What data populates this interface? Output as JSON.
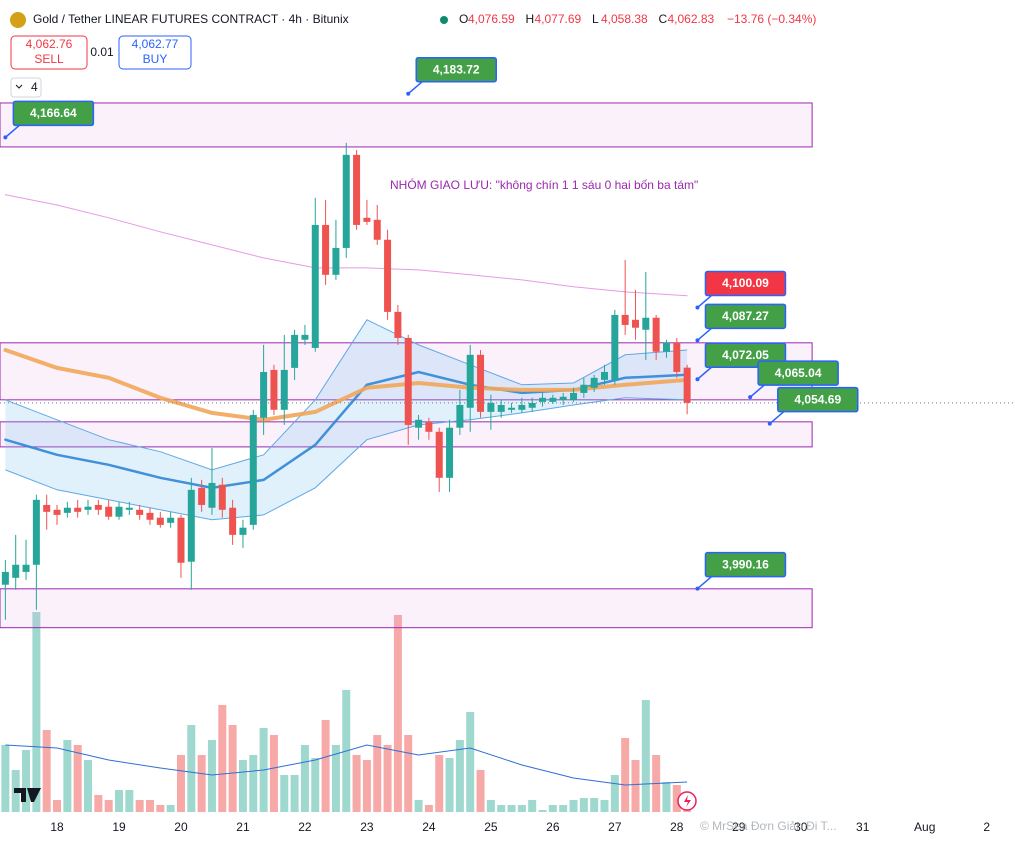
{
  "header": {
    "symbol": "Gold / Tether LINEAR FUTURES CONTRACT · 4h · Bitunix",
    "ohlc": [
      {
        "key": "O",
        "value": "4,076.59"
      },
      {
        "key": "H",
        "value": "4,077.69"
      },
      {
        "key": "L",
        "value": "4,058.38"
      },
      {
        "key": "C",
        "value": "4,062.83"
      }
    ],
    "change": "−13.76 (−0.34%)",
    "sell_price": "4,062.76",
    "sell": "SELL",
    "spread": "0.01",
    "buy_price": "4,062.77",
    "buy": "BUY",
    "indicators": "4"
  },
  "chart_data": {
    "type": "candlestick",
    "up_color": "#26a69a",
    "down_color": "#ef5350",
    "volume_up_color": "#9fd8cf",
    "volume_down_color": "#f7a9a8",
    "xlim": [
      -0.52,
      97.74
    ],
    "ylim": [
      3903.6,
      4196.9
    ],
    "volume_lim": [
      0,
      250
    ],
    "xticks": [
      {
        "value": 5,
        "label": "18"
      },
      {
        "value": 11,
        "label": "19"
      },
      {
        "value": 17,
        "label": "20"
      },
      {
        "value": 23,
        "label": "21"
      },
      {
        "value": 29,
        "label": "22"
      },
      {
        "value": 35,
        "label": "23"
      },
      {
        "value": 41,
        "label": "24"
      },
      {
        "value": 47,
        "label": "25"
      },
      {
        "value": 53,
        "label": "26"
      },
      {
        "value": 59,
        "label": "27"
      },
      {
        "value": 65,
        "label": "28"
      },
      {
        "value": 71,
        "label": "29"
      },
      {
        "value": 77,
        "label": "30"
      },
      {
        "value": 83,
        "label": "31"
      },
      {
        "value": 89,
        "label": "Aug"
      },
      {
        "value": 95,
        "label": "2"
      }
    ],
    "open": [
      3991.7,
      3994.4,
      3996.7,
      3999.5,
      4022.9,
      4021.0,
      4019.8,
      4021.8,
      4021.0,
      4022.9,
      4022.2,
      4018.3,
      4021.0,
      4021.0,
      4019.8,
      4017.9,
      4015.9,
      4017.9,
      4000.7,
      4029.6,
      4021.8,
      4030.8,
      4021.8,
      4011.2,
      4015.1,
      4057.0,
      4075.7,
      4060.1,
      4076.5,
      4087.5,
      4084.3,
      4132.4,
      4112.9,
      4123.4,
      4159.8,
      4135.2,
      4134.4,
      4126.6,
      4098.4,
      4088.2,
      4053.1,
      4055.4,
      4051.5,
      4033.5,
      4053.1,
      4060.9,
      4081.6,
      4059.3,
      4059.3,
      4060.1,
      4060.1,
      4060.9,
      4063.2,
      4063.2,
      4064.0,
      4064.0,
      4066.7,
      4068.7,
      4071.8,
      4071.8,
      4097.2,
      4095.3,
      4091.4,
      4096.1,
      4082.8,
      4086.3,
      4076.59
    ],
    "high": [
      4001.4,
      4011.2,
      4009.3,
      4026.9,
      4026.9,
      4022.9,
      4024.1,
      4024.9,
      4024.9,
      4024.9,
      4024.9,
      4024.1,
      4024.1,
      4022.9,
      4021.8,
      4020.2,
      4020.2,
      4019.0,
      4033.5,
      4032.7,
      4045.2,
      4033.5,
      4024.9,
      4017.1,
      4060.1,
      4085.5,
      4077.7,
      4089.4,
      4091.4,
      4093.3,
      4143.0,
      4142.2,
      4134.4,
      4164.5,
      4161.7,
      4142.2,
      4140.2,
      4130.5,
      4101.1,
      4089.4,
      4058.1,
      4057.0,
      4053.1,
      4056.2,
      4067.9,
      4085.5,
      4083.5,
      4066.0,
      4064.0,
      4062.8,
      4064.8,
      4064.8,
      4066.7,
      4066.0,
      4066.7,
      4068.7,
      4072.6,
      4073.8,
      4077.7,
      4099.2,
      4118.7,
      4107.0,
      4114.0,
      4097.2,
      4087.5,
      4088.2,
      4077.69
    ],
    "low": [
      3978.0,
      3989.7,
      3993.6,
      3981.9,
      4013.2,
      4015.1,
      4017.9,
      4017.9,
      4019.0,
      4019.0,
      4017.1,
      4017.1,
      4019.0,
      4017.1,
      4015.1,
      4014.0,
      4014.0,
      3994.4,
      3989.7,
      4020.2,
      4019.0,
      4017.9,
      4007.3,
      4006.1,
      4013.2,
      4050.3,
      4058.1,
      4054.2,
      4071.8,
      4085.5,
      4082.8,
      4109.0,
      4110.9,
      4119.5,
      4130.5,
      4132.4,
      4124.6,
      4095.3,
      4085.5,
      4046.4,
      4048.4,
      4048.4,
      4028.0,
      4028.0,
      4050.3,
      4051.5,
      4057.0,
      4052.3,
      4057.0,
      4058.9,
      4058.9,
      4059.3,
      4061.3,
      4062.4,
      4062.0,
      4063.2,
      4064.8,
      4067.1,
      4069.9,
      4069.9,
      4089.4,
      4087.5,
      4079.6,
      4079.6,
      4080.4,
      4072.6,
      4058.38
    ],
    "close": [
      3996.7,
      3999.5,
      3999.5,
      4024.9,
      4020.2,
      4019.0,
      4021.8,
      4020.2,
      4022.2,
      4021.0,
      4018.3,
      4022.2,
      4021.8,
      4019.0,
      4017.1,
      4015.1,
      4017.9,
      4000.3,
      4028.8,
      4022.9,
      4031.5,
      4021.0,
      4011.2,
      4014.0,
      4058.1,
      4074.9,
      4060.1,
      4075.7,
      4089.4,
      4089.4,
      4132.4,
      4112.9,
      4123.4,
      4159.8,
      4132.4,
      4133.6,
      4126.6,
      4098.4,
      4088.2,
      4054.2,
      4056.2,
      4051.5,
      4033.5,
      4053.1,
      4062.0,
      4081.6,
      4059.3,
      4062.8,
      4062.0,
      4060.9,
      4062.0,
      4062.8,
      4064.8,
      4064.8,
      4065.2,
      4066.7,
      4069.9,
      4072.6,
      4074.9,
      4097.2,
      4093.3,
      4092.2,
      4096.1,
      4082.8,
      4086.3,
      4074.9,
      4062.83
    ],
    "volume": [
      67,
      42,
      62,
      200,
      82,
      12,
      72,
      67,
      52,
      17,
      12,
      22,
      22,
      12,
      12,
      7,
      7,
      57,
      87,
      57,
      72,
      107,
      87,
      52,
      57,
      84,
      77,
      37,
      37,
      67,
      54,
      92,
      67,
      122,
      57,
      52,
      77,
      67,
      197,
      77,
      12,
      7,
      57,
      54,
      72,
      100,
      42,
      12,
      7,
      7,
      7,
      12,
      2,
      7,
      7,
      12,
      14,
      14,
      12,
      37,
      74,
      52,
      112,
      57,
      30,
      27,
      12
    ],
    "overlay_x": [
      0,
      5,
      10,
      15,
      20,
      25,
      30,
      35,
      40,
      45,
      50,
      55,
      60,
      66
    ],
    "band": {
      "color": "#5fa8e6",
      "fill": "rgba(120,190,235,0.22)",
      "upper": [
        4064.0,
        4056.2,
        4048.4,
        4043.7,
        4036.6,
        4042.5,
        4064.0,
        4095.3,
        4085.5,
        4077.7,
        4069.9,
        4070.6,
        4081.6,
        4083.5
      ],
      "lower": [
        4036.6,
        4028.8,
        4024.9,
        4021.0,
        4017.1,
        4019.0,
        4029.6,
        4048.4,
        4054.2,
        4056.2,
        4058.9,
        4062.0,
        4064.8,
        4064.0
      ]
    },
    "overlays": [
      {
        "color": "#e58ee0",
        "width": 1,
        "values": [
          4144.2,
          4140.2,
          4135.2,
          4129.7,
          4124.6,
          4119.5,
          4115.6,
          4115.6,
          4114.8,
          4112.9,
          4110.9,
          4108.2,
          4106.2,
          4104.7
        ]
      },
      {
        "color": "#2f86d6",
        "width": 2.5,
        "values": [
          4048.4,
          4042.5,
          4038.6,
          4033.5,
          4029.6,
          4032.7,
          4046.4,
          4069.9,
          4074.9,
          4069.9,
          4066.7,
          4067.9,
          4072.6,
          4073.8
        ]
      },
      {
        "color": "#f2a65a",
        "width": 4,
        "values": [
          4083.5,
          4076.5,
          4072.6,
          4064.8,
          4058.9,
          4056.2,
          4059.3,
          4068.7,
          4070.6,
          4068.7,
          4067.9,
          4067.9,
          4069.9,
          4071.8
        ]
      }
    ],
    "volume_ma": {
      "color": "#2f6fd6",
      "values": [
        67,
        64,
        52,
        44,
        37,
        42,
        52,
        67,
        57,
        64,
        47,
        34,
        27,
        30
      ]
    },
    "zone_end": 78.1,
    "zones": [
      {
        "low": 4162.9,
        "high": 4180.1
      },
      {
        "low": 4064.0,
        "high": 4086.3
      },
      {
        "low": 4045.6,
        "high": 4055.4
      },
      {
        "low": 3974.9,
        "high": 3990.1
      }
    ],
    "annotations": [
      {
        "value": 4183.72,
        "label": "4,183.72",
        "x": 39,
        "color": "#43a047"
      },
      {
        "value": 4166.64,
        "label": "4,166.64",
        "x": 0,
        "color": "#43a047"
      },
      {
        "value": 4100.09,
        "label": "4,100.09",
        "x": 67,
        "color": "#f23645"
      },
      {
        "value": 4087.27,
        "label": "4,087.27",
        "x": 67,
        "color": "#43a047"
      },
      {
        "value": 4072.05,
        "label": "4,072.05",
        "x": 67,
        "color": "#43a047"
      },
      {
        "value": 4065.04,
        "label": "4,065.04",
        "x": 72.1,
        "color": "#43a047"
      },
      {
        "value": 4054.69,
        "label": "4,054.69",
        "x": 74,
        "color": "#43a047"
      },
      {
        "value": 3990.16,
        "label": "3,990.16",
        "x": 67,
        "color": "#43a047"
      }
    ],
    "note": "NHÓM GIAO LƯU: \"không chín 1 1 sáu 0 hai bốn ba tám\"",
    "watermark": "© MrSea Đơn Giản Đi T..."
  }
}
